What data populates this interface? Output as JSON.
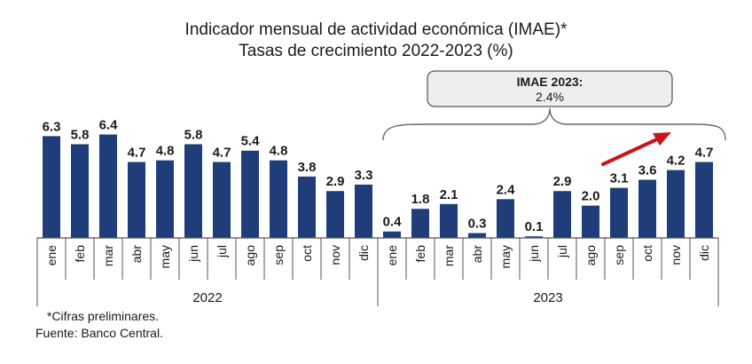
{
  "title": "Indicador mensual de actividad económica (IMAE)*",
  "subtitle": "Tasas de crecimiento 2022-2023 (%)",
  "callout": {
    "line1": "IMAE 2023:",
    "line2": "2.4%"
  },
  "footnotes": {
    "note": "*Cifras preliminares.",
    "source": "Fuente: Banco Central."
  },
  "colors": {
    "bar": "#1f3e79",
    "arrow": "#c8161d",
    "callout_fill": "#eeeeee",
    "axis": "#555555"
  },
  "chart_data": {
    "type": "bar",
    "groups": [
      {
        "year": "2022",
        "categories": [
          "ene",
          "feb",
          "mar",
          "abr",
          "may",
          "jun",
          "jul",
          "ago",
          "sep",
          "oct",
          "nov",
          "dic"
        ],
        "values": [
          6.3,
          5.8,
          6.4,
          4.7,
          4.8,
          5.8,
          4.7,
          5.4,
          4.8,
          3.8,
          2.9,
          3.3
        ]
      },
      {
        "year": "2023",
        "categories": [
          "ene",
          "feb",
          "mar",
          "abr",
          "may",
          "jun",
          "jul",
          "ago",
          "sep",
          "oct",
          "nov",
          "dic"
        ],
        "values": [
          0.4,
          1.8,
          2.1,
          0.3,
          2.4,
          0.1,
          2.9,
          2.0,
          3.1,
          3.6,
          4.2,
          4.7
        ]
      }
    ],
    "ylim": [
      0,
      7
    ],
    "grid": false,
    "data_labels": true
  }
}
